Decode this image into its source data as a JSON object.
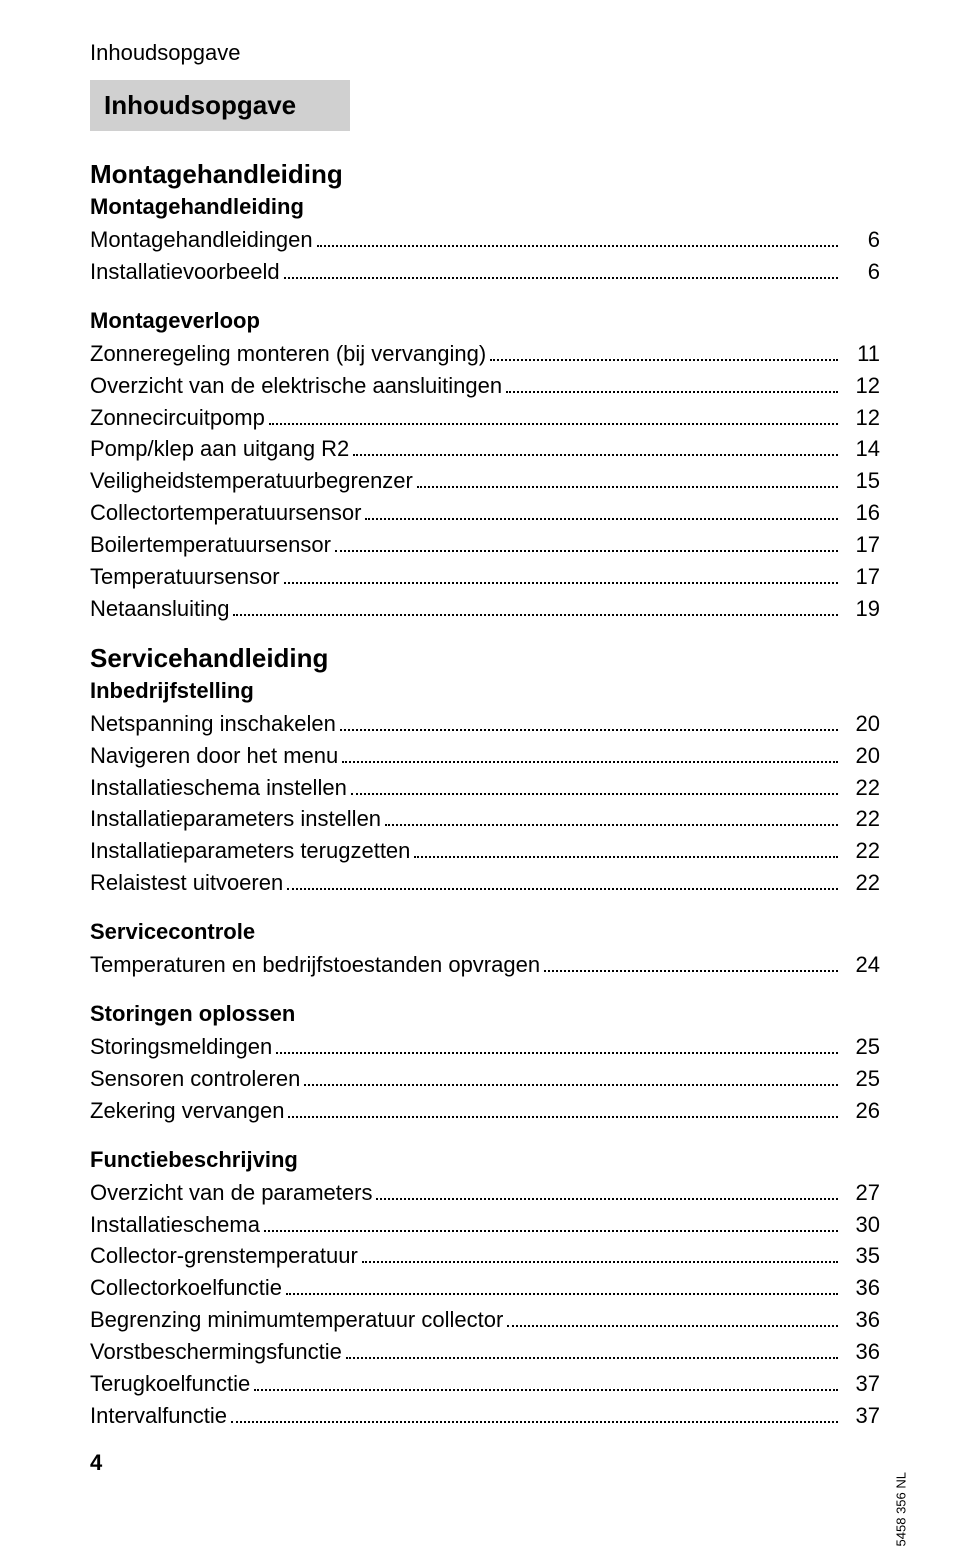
{
  "header": "Inhoudsopgave",
  "title_box": "Inhoudsopgave",
  "sections": [
    {
      "heading": "Montagehandleiding",
      "groups": [
        {
          "sub": "Montagehandleiding",
          "items": [
            {
              "label": "Montagehandleidingen",
              "page": "6"
            },
            {
              "label": "Installatievoorbeeld",
              "page": "6"
            }
          ]
        },
        {
          "sub": "Montageverloop",
          "items": [
            {
              "label": "Zonneregeling monteren (bij vervanging)",
              "page": "11"
            },
            {
              "label": "Overzicht van de elektrische aansluitingen",
              "page": "12"
            },
            {
              "label": "Zonnecircuitpomp",
              "page": "12"
            },
            {
              "label": "Pomp/klep aan uitgang R2",
              "page": "14"
            },
            {
              "label": "Veiligheidstemperatuurbegrenzer",
              "page": "15"
            },
            {
              "label": "Collectortemperatuursensor",
              "page": "16"
            },
            {
              "label": "Boilertemperatuursensor",
              "page": "17"
            },
            {
              "label": "Temperatuursensor",
              "page": "17"
            },
            {
              "label": "Netaansluiting",
              "page": "19"
            }
          ]
        }
      ]
    },
    {
      "heading": "Servicehandleiding",
      "groups": [
        {
          "sub": "Inbedrijfstelling",
          "items": [
            {
              "label": "Netspanning inschakelen",
              "page": "20"
            },
            {
              "label": "Navigeren door het menu",
              "page": "20"
            },
            {
              "label": "Installatieschema instellen",
              "page": "22"
            },
            {
              "label": "Installatieparameters instellen",
              "page": "22"
            },
            {
              "label": "Installatieparameters terugzetten",
              "page": "22"
            },
            {
              "label": "Relaistest uitvoeren",
              "page": "22"
            }
          ]
        },
        {
          "sub": "Servicecontrole",
          "items": [
            {
              "label": "Temperaturen en bedrijfstoestanden opvragen",
              "page": "24"
            }
          ]
        },
        {
          "sub": "Storingen oplossen",
          "items": [
            {
              "label": "Storingsmeldingen",
              "page": "25"
            },
            {
              "label": "Sensoren controleren",
              "page": "25"
            },
            {
              "label": "Zekering vervangen",
              "page": "26"
            }
          ]
        },
        {
          "sub": "Functiebeschrijving",
          "items": [
            {
              "label": "Overzicht van de parameters",
              "page": "27"
            },
            {
              "label": "Installatieschema",
              "page": "30"
            },
            {
              "label": "Collector-grenstemperatuur",
              "page": "35"
            },
            {
              "label": "Collectorkoelfunctie",
              "page": "36"
            },
            {
              "label": "Begrenzing minimumtemperatuur collector",
              "page": "36"
            },
            {
              "label": "Vorstbeschermingsfunctie",
              "page": "36"
            },
            {
              "label": "Terugkoelfunctie",
              "page": "37"
            },
            {
              "label": "Intervalfunctie",
              "page": "37"
            }
          ]
        }
      ]
    }
  ],
  "footer_page": "4",
  "side_code": "5458 356 NL"
}
